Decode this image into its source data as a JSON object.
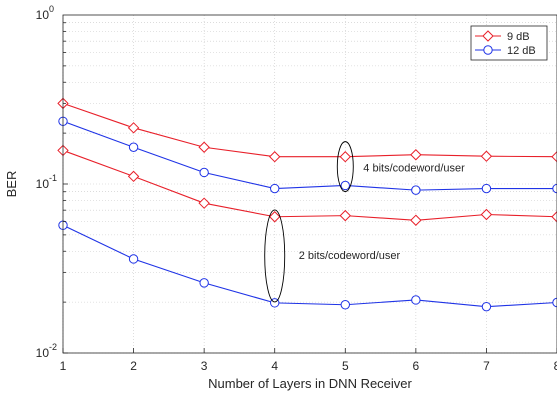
{
  "chart_data": {
    "type": "line",
    "xlabel": "Number of Layers in DNN Receiver",
    "ylabel": "BER",
    "x": [
      1,
      2,
      3,
      4,
      5,
      6,
      7,
      8
    ],
    "xlim": [
      1,
      8
    ],
    "ylim": [
      0.01,
      1
    ],
    "yscale": "log",
    "grid": true,
    "legend_position": "top-right",
    "xticks": [
      "1",
      "2",
      "3",
      "4",
      "5",
      "6",
      "7",
      "8"
    ],
    "yticks": [
      {
        "base": "10",
        "exp": "-2",
        "value": 0.01
      },
      {
        "base": "10",
        "exp": "-1",
        "value": 0.1
      },
      {
        "base": "10",
        "exp": "0",
        "value": 1
      }
    ],
    "legend": [
      {
        "label": "9 dB",
        "color": "#e8202a",
        "marker": "diamond"
      },
      {
        "label": "12 dB",
        "color": "#1f33e6",
        "marker": "circle"
      }
    ],
    "series": [
      {
        "color": "#e8202a",
        "marker": "diamond",
        "values": [
          0.3,
          0.215,
          0.165,
          0.145,
          0.145,
          0.149,
          0.146,
          0.145
        ]
      },
      {
        "color": "#1f33e6",
        "marker": "circle",
        "values": [
          0.235,
          0.165,
          0.117,
          0.094,
          0.098,
          0.092,
          0.094,
          0.094
        ]
      },
      {
        "color": "#e8202a",
        "marker": "diamond",
        "values": [
          0.158,
          0.111,
          0.077,
          0.064,
          0.065,
          0.061,
          0.066,
          0.064
        ]
      },
      {
        "color": "#1f33e6",
        "marker": "circle",
        "values": [
          0.057,
          0.036,
          0.026,
          0.0198,
          0.0193,
          0.0206,
          0.0188,
          0.0199
        ]
      }
    ],
    "annotations": [
      {
        "text": "4 bits/codeword/user",
        "x": 5,
        "y": 0.12
      },
      {
        "text": "2 bits/codeword/user",
        "x": 4,
        "y": 0.036
      }
    ]
  }
}
